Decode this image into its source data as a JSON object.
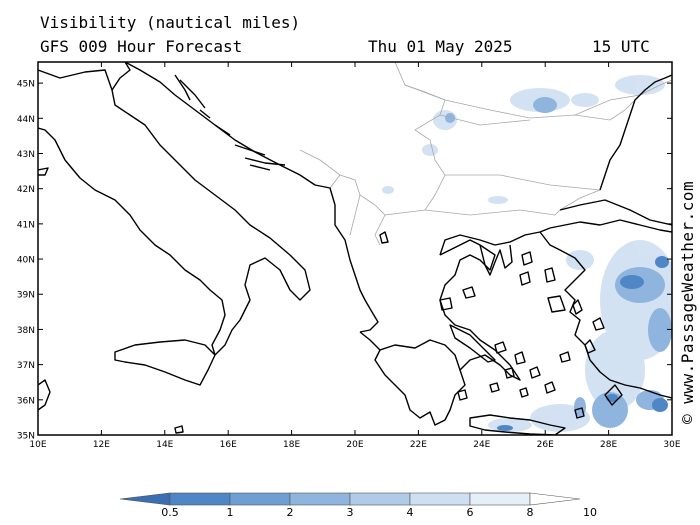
{
  "header": {
    "title": "Visibility (nautical miles)",
    "model": "GFS 009 Hour Forecast",
    "date": "Thu 01 May 2025",
    "time": "15 UTC"
  },
  "credit": "© www.PassageWeather.com",
  "axes": {
    "lat_labels": [
      "45N",
      "44N",
      "43N",
      "42N",
      "41N",
      "40N",
      "39N",
      "38N",
      "37N",
      "36N",
      "35N"
    ],
    "lon_labels": [
      "10E",
      "12E",
      "14E",
      "16E",
      "18E",
      "20E",
      "22E",
      "24E",
      "26E",
      "28E",
      "30E"
    ],
    "lat_range": [
      35,
      45.6
    ],
    "lon_range": [
      10,
      30
    ]
  },
  "legend": {
    "ticks": [
      "0.5",
      "1",
      "2",
      "3",
      "4",
      "6",
      "8",
      "10"
    ],
    "colors": [
      "#3b6fb3",
      "#4f86c6",
      "#6e9ed2",
      "#8fb4dd",
      "#b0cbe8",
      "#cfdff2",
      "#e6eef8",
      "#ffffff"
    ]
  }
}
